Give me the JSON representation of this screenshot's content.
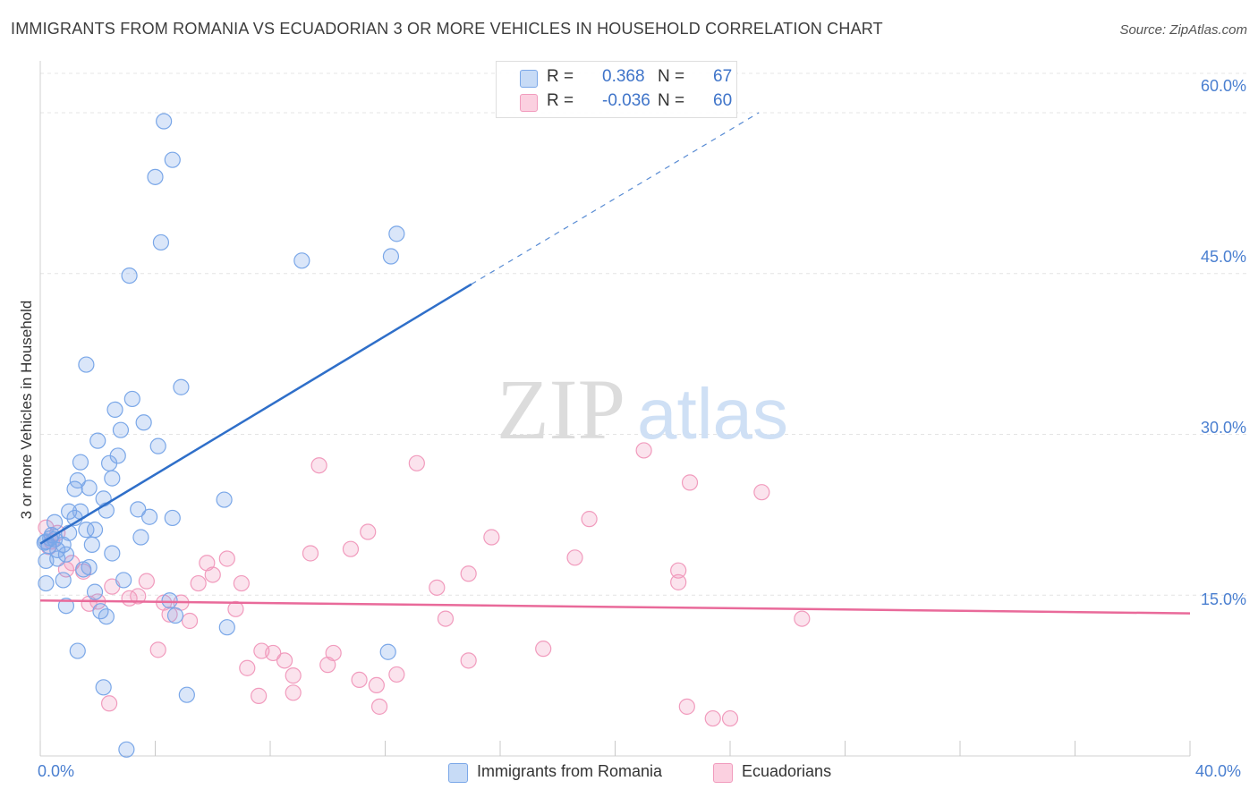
{
  "chart_data": {
    "type": "scatter",
    "title": "IMMIGRANTS FROM ROMANIA VS ECUADORIAN 3 OR MORE VEHICLES IN HOUSEHOLD CORRELATION CHART",
    "source": "Source: ZipAtlas.com",
    "xlabel": "",
    "ylabel": "3 or more Vehicles in Household",
    "xlim": [
      0,
      40
    ],
    "ylim": [
      0,
      64
    ],
    "x_tick_labels": [
      "0.0%",
      "40.0%"
    ],
    "y_ticks": [
      15,
      30,
      45,
      60
    ],
    "y_tick_labels": [
      "15.0%",
      "30.0%",
      "45.0%",
      "60.0%"
    ],
    "watermark": {
      "zip": "ZIP",
      "atlas": "atlas"
    },
    "legend": {
      "r_label": "R =",
      "n_label": "N =",
      "entries": [
        {
          "r": "0.368",
          "n": "67"
        },
        {
          "r": "-0.036",
          "n": "60"
        }
      ]
    },
    "series": [
      {
        "name": "Immigrants from Romania",
        "color": "#7aa7e8",
        "line_color": "#2f6fc9",
        "trend": {
          "x0": 0,
          "y0": 19.8,
          "x1": 15,
          "y1": 44,
          "dash_to_x": 25,
          "dash_to_y": 60
        },
        "points": [
          [
            4.3,
            59.2
          ],
          [
            4.6,
            55.6
          ],
          [
            4.0,
            54.0
          ],
          [
            4.2,
            47.9
          ],
          [
            3.1,
            44.8
          ],
          [
            9.1,
            46.2
          ],
          [
            12.4,
            48.7
          ],
          [
            12.2,
            46.6
          ],
          [
            1.6,
            36.5
          ],
          [
            4.9,
            34.4
          ],
          [
            3.2,
            33.3
          ],
          [
            2.6,
            32.3
          ],
          [
            3.6,
            31.1
          ],
          [
            2.8,
            30.4
          ],
          [
            2.0,
            29.4
          ],
          [
            4.1,
            28.9
          ],
          [
            2.7,
            28.0
          ],
          [
            1.4,
            27.4
          ],
          [
            2.4,
            27.3
          ],
          [
            2.5,
            25.9
          ],
          [
            1.3,
            25.7
          ],
          [
            1.2,
            24.9
          ],
          [
            1.7,
            25.0
          ],
          [
            2.2,
            24.0
          ],
          [
            6.4,
            23.9
          ],
          [
            1.0,
            22.8
          ],
          [
            1.4,
            22.8
          ],
          [
            2.3,
            22.9
          ],
          [
            3.4,
            23.0
          ],
          [
            1.2,
            22.2
          ],
          [
            3.8,
            22.3
          ],
          [
            4.6,
            22.2
          ],
          [
            0.5,
            21.8
          ],
          [
            1.6,
            21.1
          ],
          [
            1.9,
            21.1
          ],
          [
            1.0,
            20.8
          ],
          [
            0.4,
            20.6
          ],
          [
            0.2,
            20.0
          ],
          [
            0.5,
            20.2
          ],
          [
            3.5,
            20.4
          ],
          [
            0.3,
            19.6
          ],
          [
            0.8,
            19.7
          ],
          [
            1.8,
            19.7
          ],
          [
            0.9,
            18.8
          ],
          [
            2.5,
            18.9
          ],
          [
            0.6,
            18.4
          ],
          [
            0.2,
            18.2
          ],
          [
            1.7,
            17.6
          ],
          [
            1.5,
            17.4
          ],
          [
            0.8,
            16.4
          ],
          [
            2.9,
            16.4
          ],
          [
            0.2,
            16.1
          ],
          [
            1.9,
            15.3
          ],
          [
            4.5,
            14.5
          ],
          [
            0.9,
            14.0
          ],
          [
            2.1,
            13.5
          ],
          [
            2.3,
            13.0
          ],
          [
            4.7,
            13.1
          ],
          [
            6.5,
            12.0
          ],
          [
            1.3,
            9.8
          ],
          [
            12.1,
            9.7
          ],
          [
            2.2,
            6.4
          ],
          [
            5.1,
            5.7
          ],
          [
            3.0,
            0.6
          ],
          [
            0.15,
            19.9
          ],
          [
            0.35,
            20.3
          ],
          [
            0.6,
            19.2
          ]
        ]
      },
      {
        "name": "Ecuadorians",
        "color": "#f19bbd",
        "line_color": "#e96a9a",
        "trend": {
          "x0": 0,
          "y0": 14.5,
          "x1": 40,
          "y1": 13.3
        },
        "points": [
          [
            0.2,
            21.3
          ],
          [
            0.4,
            20.0
          ],
          [
            0.3,
            19.5
          ],
          [
            0.6,
            20.8
          ],
          [
            1.1,
            18.0
          ],
          [
            1.5,
            17.2
          ],
          [
            0.9,
            17.4
          ],
          [
            2.5,
            15.8
          ],
          [
            3.7,
            16.3
          ],
          [
            5.5,
            16.1
          ],
          [
            6.0,
            16.9
          ],
          [
            5.8,
            18.0
          ],
          [
            6.5,
            18.4
          ],
          [
            7.0,
            16.1
          ],
          [
            3.4,
            14.9
          ],
          [
            3.1,
            14.7
          ],
          [
            2.0,
            14.4
          ],
          [
            1.7,
            14.2
          ],
          [
            4.5,
            13.2
          ],
          [
            4.3,
            14.3
          ],
          [
            4.9,
            14.3
          ],
          [
            5.2,
            12.6
          ],
          [
            6.8,
            13.7
          ],
          [
            9.4,
            18.9
          ],
          [
            10.8,
            19.3
          ],
          [
            11.4,
            20.9
          ],
          [
            13.1,
            27.3
          ],
          [
            9.7,
            27.1
          ],
          [
            15.7,
            20.4
          ],
          [
            19.1,
            22.1
          ],
          [
            18.6,
            18.5
          ],
          [
            14.9,
            17.0
          ],
          [
            13.8,
            15.7
          ],
          [
            14.1,
            12.8
          ],
          [
            17.5,
            10.0
          ],
          [
            14.9,
            8.9
          ],
          [
            4.1,
            9.9
          ],
          [
            7.7,
            9.8
          ],
          [
            8.1,
            9.6
          ],
          [
            8.5,
            8.9
          ],
          [
            10.2,
            9.6
          ],
          [
            7.2,
            8.2
          ],
          [
            10.0,
            8.5
          ],
          [
            11.1,
            7.1
          ],
          [
            12.4,
            7.6
          ],
          [
            8.8,
            7.5
          ],
          [
            11.7,
            6.6
          ],
          [
            7.6,
            5.6
          ],
          [
            8.8,
            5.9
          ],
          [
            11.8,
            4.6
          ],
          [
            2.4,
            4.9
          ],
          [
            21.0,
            28.5
          ],
          [
            22.6,
            25.5
          ],
          [
            25.1,
            24.6
          ],
          [
            22.2,
            17.3
          ],
          [
            22.2,
            16.2
          ],
          [
            26.5,
            12.8
          ],
          [
            22.5,
            4.6
          ],
          [
            23.4,
            3.5
          ],
          [
            24.0,
            3.5
          ]
        ]
      }
    ]
  }
}
